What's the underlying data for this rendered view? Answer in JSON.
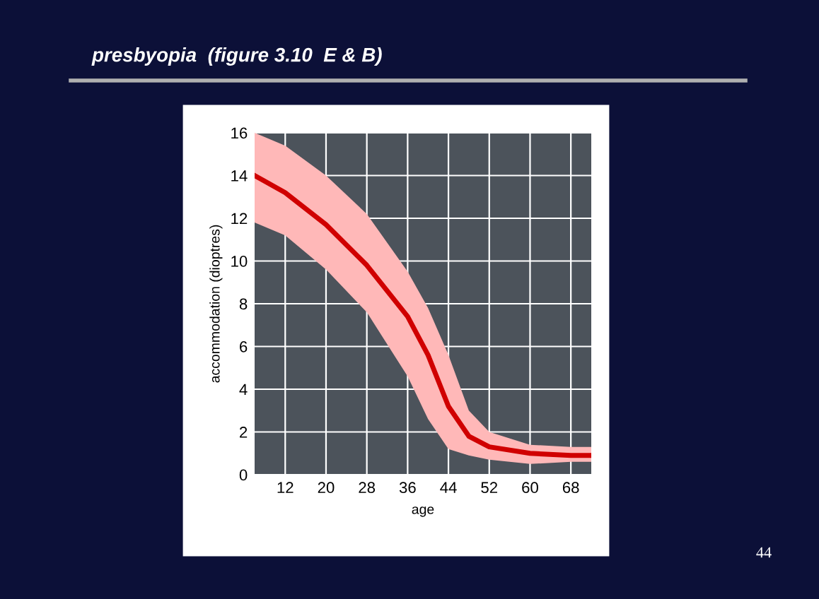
{
  "chart_data": {
    "type": "line",
    "title": "presbyopia  (figure 3.10  E & B)",
    "xlabel": "age",
    "ylabel": "accommodation (dioptres)",
    "x": [
      6,
      12,
      20,
      28,
      36,
      40,
      44,
      48,
      52,
      60,
      68,
      72
    ],
    "series": [
      {
        "color": "#d00000",
        "values": [
          14,
          13.2,
          11.7,
          9.8,
          7.4,
          5.6,
          3.2,
          1.8,
          1.3,
          1.0,
          0.9,
          0.9
        ],
        "lower": [
          11.8,
          11.2,
          9.6,
          7.6,
          4.6,
          2.6,
          1.2,
          0.9,
          0.7,
          0.5,
          0.6,
          0.6
        ],
        "upper": [
          16,
          15.4,
          14,
          12.2,
          9.5,
          7.8,
          5.6,
          3,
          2,
          1.4,
          1.3,
          1.3
        ]
      }
    ],
    "xlim": [
      6,
      72
    ],
    "xticks": [
      12,
      20,
      28,
      36,
      44,
      52,
      60,
      68
    ],
    "ylim": [
      0,
      16
    ],
    "yticks": [
      0,
      2,
      4,
      6,
      8,
      10,
      12,
      14,
      16
    ],
    "grid": true,
    "marker": "none",
    "line_style": "solid",
    "annotations": [
      "44"
    ]
  }
}
